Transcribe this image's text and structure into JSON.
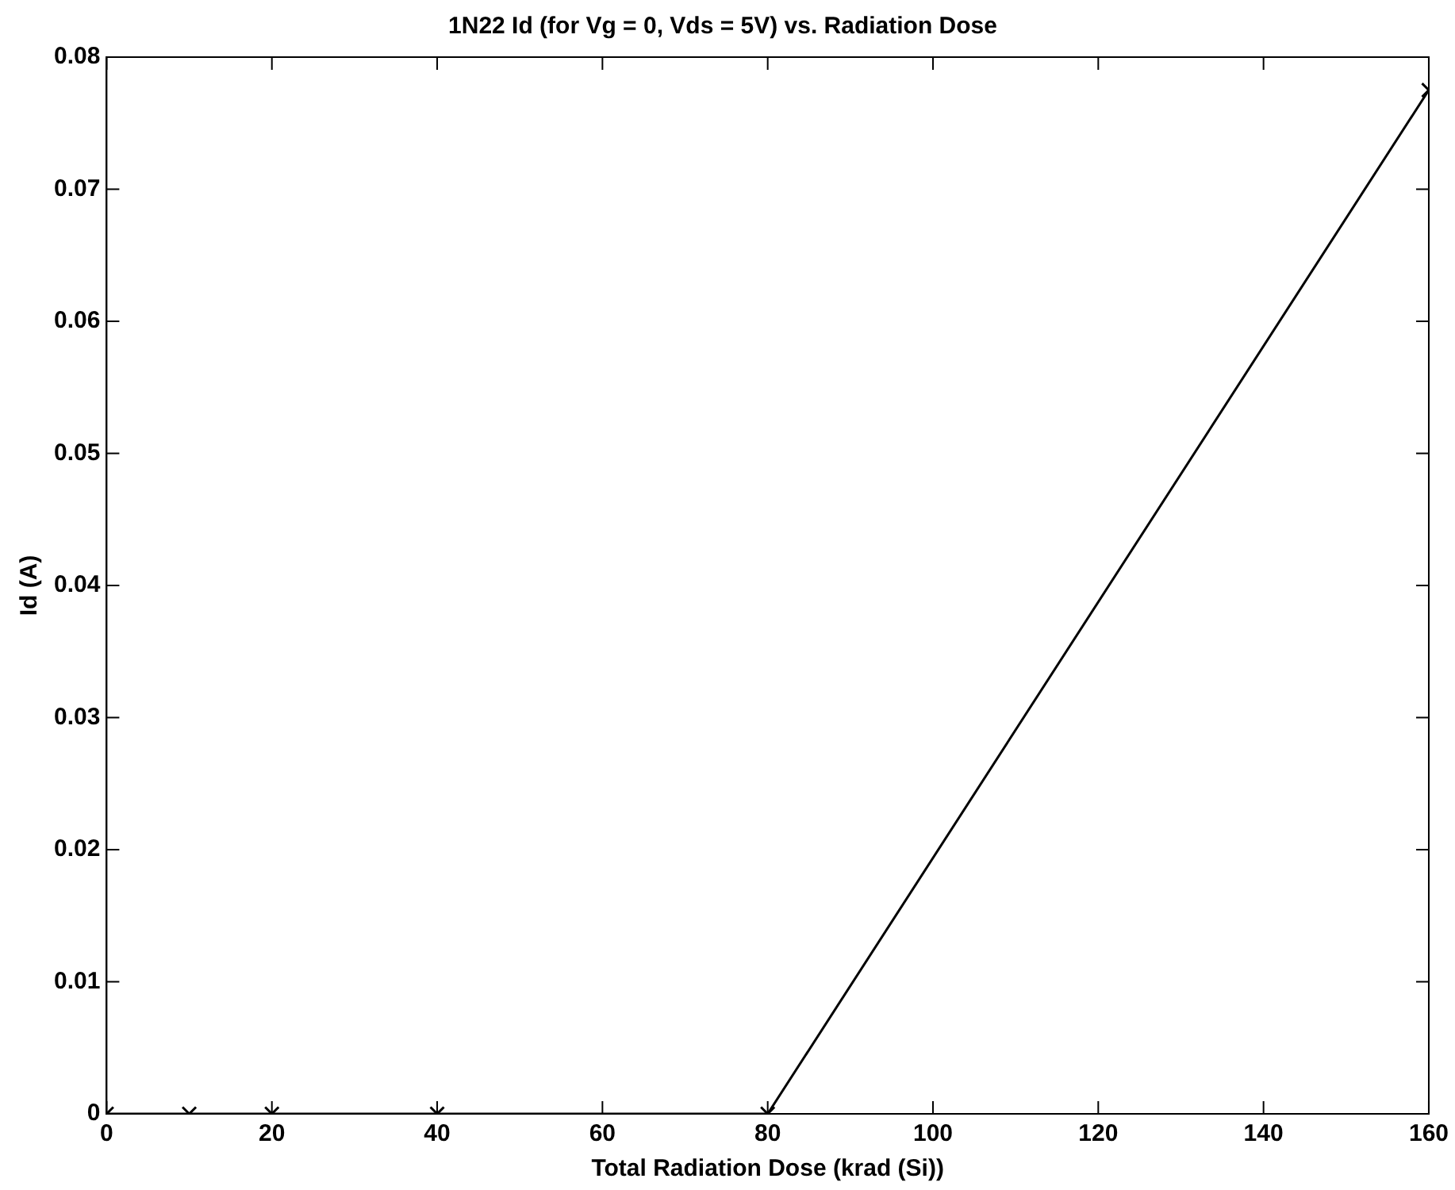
{
  "chart_data": {
    "type": "line",
    "title": "1N22 Id (for Vg = 0, Vds = 5V) vs. Radiation Dose",
    "xlabel": "Total Radiation Dose (krad (Si))",
    "ylabel": "Id (A)",
    "x": [
      0,
      10,
      20,
      40,
      80,
      160
    ],
    "series": [
      {
        "color": "#000000",
        "values": [
          0,
          0,
          0,
          0,
          0,
          0.0775
        ]
      }
    ],
    "xlim": [
      0,
      160
    ],
    "xticks": [
      0,
      20,
      40,
      60,
      80,
      100,
      120,
      140,
      160
    ],
    "ylim": [
      0,
      0.08
    ],
    "yticks": [
      0,
      0.01,
      0.02,
      0.03,
      0.04,
      0.05,
      0.06,
      0.07,
      0.08
    ],
    "grid": false,
    "legend": false,
    "marker": "cross",
    "line_style": "solid"
  }
}
